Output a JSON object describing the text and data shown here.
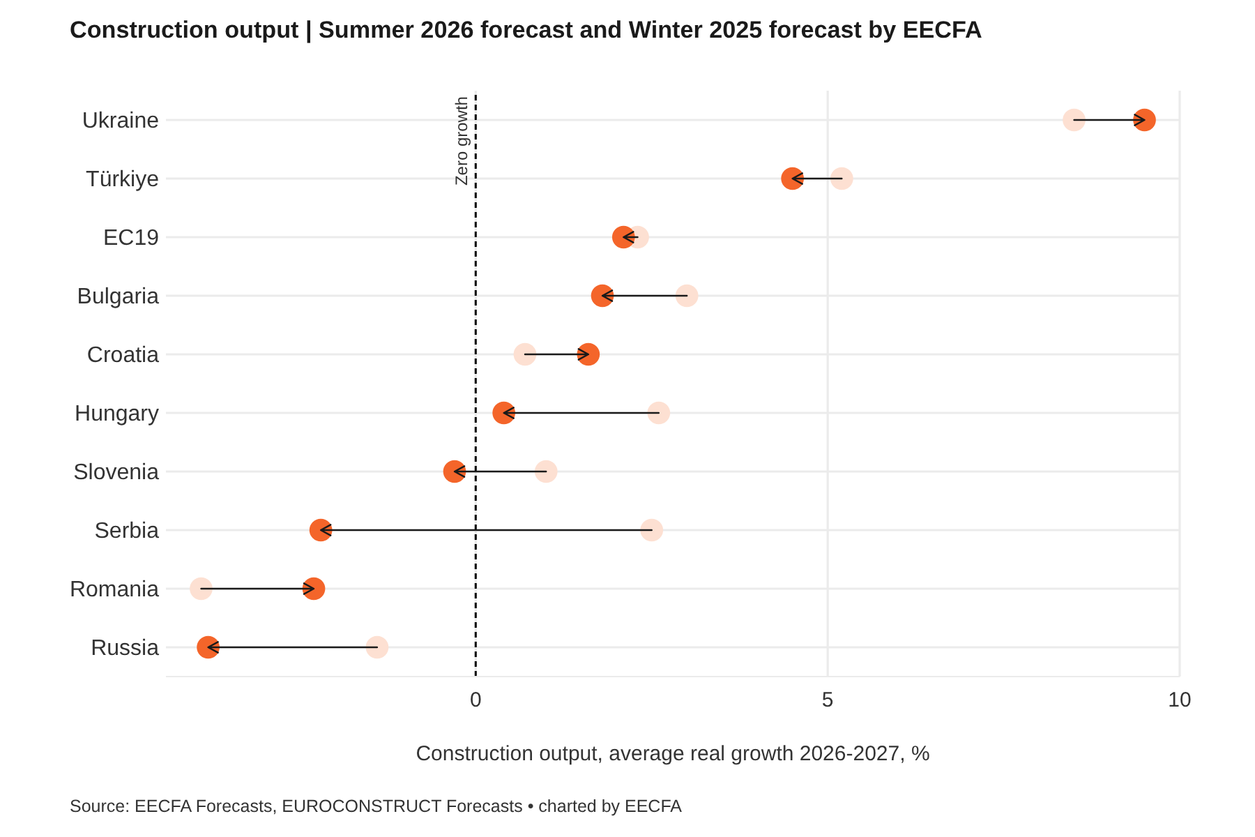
{
  "chart_data": {
    "type": "scatter",
    "orientation": "horizontal",
    "title": "Construction output | Summer 2026 forecast and Winter 2025 forecast by EECFA",
    "xlabel": "Construction output, average real growth 2026-2027, %",
    "categories": [
      "Ukraine",
      "Türkiye",
      "EC19",
      "Bulgaria",
      "Croatia",
      "Hungary",
      "Slovenia",
      "Serbia",
      "Romania",
      "Russia"
    ],
    "series": [
      {
        "color": "#fde0d2",
        "values": [
          8.5,
          5.2,
          2.3,
          3.0,
          0.7,
          2.6,
          1.0,
          2.5,
          -3.9,
          -1.4
        ]
      },
      {
        "color": "#f4652a",
        "values": [
          9.5,
          4.5,
          2.1,
          1.8,
          1.6,
          0.4,
          -0.3,
          -2.2,
          -2.3,
          -3.8
        ]
      }
    ],
    "xlim": [
      -4.4,
      10
    ],
    "xticks": [
      0,
      5,
      10
    ],
    "grid": true,
    "marker": "circle",
    "ref_lines": [
      {
        "axis": "x",
        "value": 0,
        "label": "Zero growth",
        "color": "#000000",
        "line_style": "dashed"
      }
    ],
    "annotations": [
      "Source: EECFA Forecasts, EUROCONSTRUCT Forecasts • charted by EECFA"
    ]
  }
}
